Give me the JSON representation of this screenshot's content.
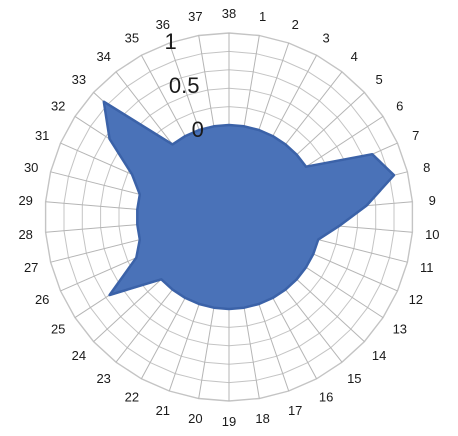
{
  "chart_data": {
    "type": "radar",
    "title": "",
    "categories": [
      "1",
      "2",
      "3",
      "4",
      "5",
      "6",
      "7",
      "8",
      "9",
      "10",
      "11",
      "12",
      "13",
      "14",
      "15",
      "16",
      "17",
      "18",
      "19",
      "20",
      "21",
      "22",
      "23",
      "24",
      "25",
      "26",
      "27",
      "28",
      "29",
      "30",
      "31",
      "32",
      "33",
      "34",
      "35",
      "36",
      "37",
      "38"
    ],
    "rticks": [
      "0",
      "0.5",
      "1"
    ],
    "rlim": [
      -1,
      1
    ],
    "series": [
      {
        "values": [
          0,
          0,
          0,
          0,
          0,
          0,
          0.7,
          0.85,
          0.5,
          0.2,
          0,
          0,
          0,
          0,
          0,
          0,
          0,
          0,
          0,
          0,
          0,
          0,
          0,
          0,
          0.55,
          0.1,
          0,
          0,
          0,
          0,
          0.15,
          0.55,
          0.85,
          0,
          0,
          0,
          0,
          0
        ],
        "fill_color": "#4a72b8",
        "line_color": "#3b62a8"
      }
    ],
    "grid": true
  }
}
